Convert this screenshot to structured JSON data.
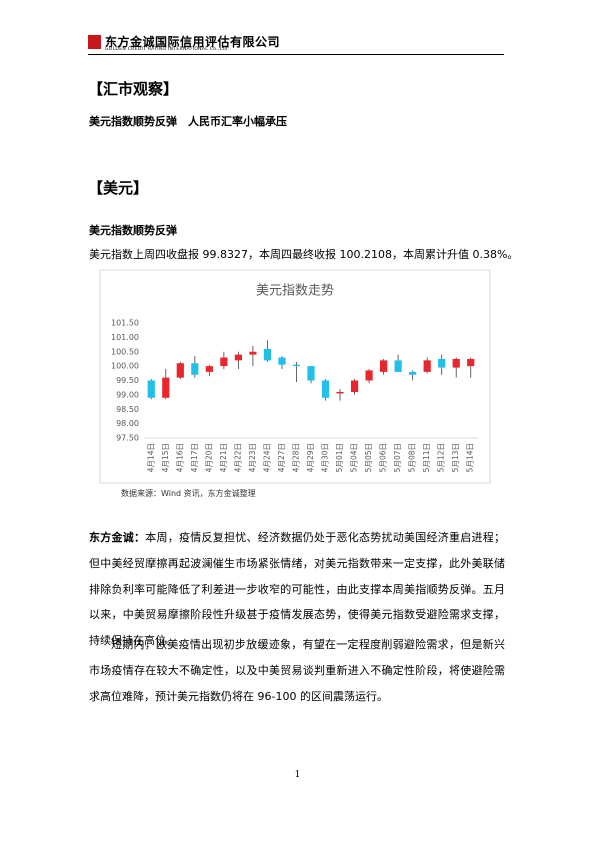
{
  "header": {
    "company": "东方金诚国际信用评估有限公司",
    "english": "GOLDEN CREDIT RATING INTERNATIONAL Co.,Ltd."
  },
  "section_title": "【汇市观察】",
  "headline": "美元指数顺势反弹　人民币汇率小幅承压",
  "subsection": "【美元】",
  "subheading": "美元指数顺势反弹",
  "summary": "美元指数上周四收盘报 99.8327，本周四最终收报 100.2108，本周累计升值 0.38%。",
  "chart_data": {
    "type": "candlestick",
    "title": "美元指数走势",
    "categories": [
      "4月14日",
      "4月15日",
      "4月16日",
      "4月17日",
      "4月20日",
      "4月21日",
      "4月22日",
      "4月23日",
      "4月24日",
      "4月27日",
      "4月28日",
      "4月29日",
      "4月30日",
      "5月01日",
      "5月04日",
      "5月05日",
      "5月06日",
      "5月07日",
      "5月08日",
      "5月11日",
      "5月12日",
      "5月13日",
      "5月14日"
    ],
    "open": [
      99.5,
      98.9,
      99.6,
      100.1,
      99.8,
      100.0,
      100.2,
      100.4,
      100.6,
      100.3,
      100.05,
      100.0,
      99.5,
      99.05,
      99.1,
      99.5,
      99.8,
      100.2,
      99.8,
      99.8,
      100.25,
      99.95,
      100.0
    ],
    "high": [
      99.55,
      99.9,
      100.15,
      100.35,
      100.05,
      100.5,
      100.5,
      100.7,
      100.9,
      100.35,
      100.15,
      100.0,
      99.55,
      99.2,
      99.55,
      99.9,
      100.25,
      100.4,
      99.85,
      100.3,
      100.4,
      100.3,
      100.3
    ],
    "low": [
      98.85,
      98.85,
      99.55,
      99.6,
      99.65,
      99.9,
      99.9,
      100.0,
      100.15,
      99.9,
      99.45,
      99.4,
      98.8,
      98.8,
      99.0,
      99.4,
      99.7,
      99.8,
      99.5,
      99.75,
      99.7,
      99.6,
      99.6
    ],
    "close": [
      98.9,
      99.6,
      100.1,
      99.7,
      100.0,
      100.3,
      100.4,
      100.5,
      100.2,
      100.05,
      100.0,
      99.5,
      98.9,
      99.1,
      99.5,
      99.85,
      100.2,
      99.8,
      99.7,
      100.2,
      99.95,
      100.25,
      100.25
    ],
    "up_color": "#e8262b",
    "down_color": "#21c0ea",
    "ylim": [
      97.5,
      101.5
    ],
    "yticks": [
      {
        "value": 97.5,
        "label": "97.50"
      },
      {
        "value": 98,
        "label": "98.00"
      },
      {
        "value": 98.5,
        "label": "98.50"
      },
      {
        "value": 99,
        "label": "99.00"
      },
      {
        "value": 99.5,
        "label": "99.50"
      },
      {
        "value": 100,
        "label": "100.00"
      },
      {
        "value": 100.5,
        "label": "100.50"
      },
      {
        "value": 101,
        "label": "101.00"
      },
      {
        "value": 101.5,
        "label": "101.50"
      }
    ],
    "grid": false
  },
  "source": "数据来源：Wind 资讯，东方金诚整理",
  "paragraphs": [
    {
      "lead": "东方金诚：",
      "text": "本周，疫情反复担忧、经济数据仍处于恶化态势扰动美国经济重启进程；但中美经贸摩擦再起波澜催生市场紧张情绪，对美元指数带来一定支撑，此外美联储排除负利率可能降低了利差进一步收窄的可能性，由此支撑本周美指顺势反弹。五月以来，中美贸易摩擦阶段性升级甚于疫情发展态势，使得美元指数受避险需求支撑，持续保持在高位。"
    },
    {
      "text": "短期内，欧美疫情出现初步放缓迹象，有望在一定程度削弱避险需求，但是新兴市场疫情存在较大不确定性，以及中美贸易谈判重新进入不确定性阶段，将使避险需求高位难降，预计美元指数仍将在 96-100 的区间震荡运行。"
    }
  ],
  "page_number": "1"
}
